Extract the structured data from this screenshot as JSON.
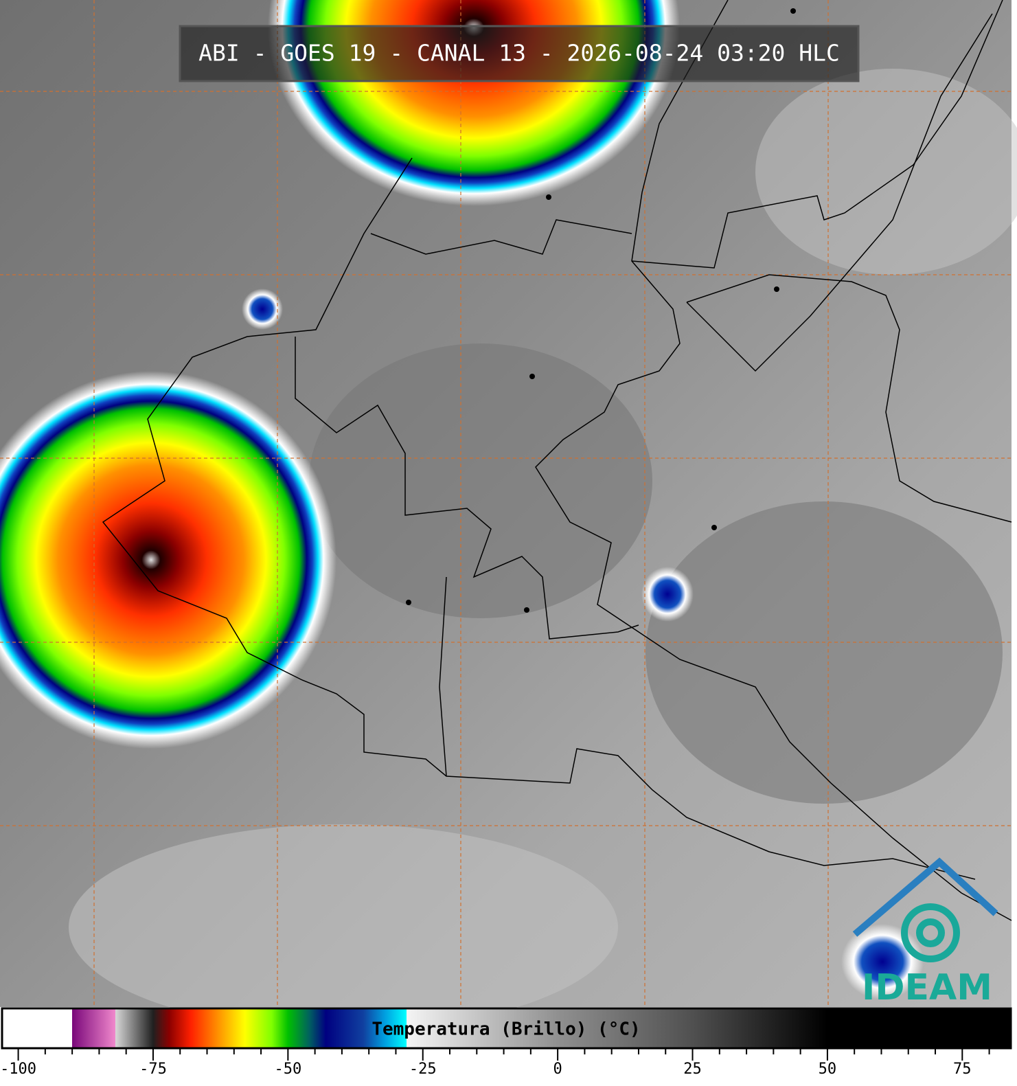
{
  "title": "ABI - GOES 19 - CANAL 13 - 2026-08-24 03:20 HLC",
  "logo": "IDEAM",
  "colorbar": {
    "label": "Temperatura (Brillo) (°C)",
    "xlim": [
      -103,
      84
    ],
    "xticks": [
      -100,
      -75,
      -50,
      -25,
      0,
      25,
      50,
      75
    ],
    "minor_xticks": [
      -95,
      -90,
      -85,
      -80,
      -70,
      -65,
      -60,
      -55,
      -45,
      -40,
      -35,
      -30,
      -20,
      -15,
      -10,
      -5,
      5,
      10,
      15,
      20,
      30,
      35,
      40,
      45,
      55,
      60,
      65,
      70,
      80
    ],
    "stops": [
      {
        "value": -103,
        "color": "#ffffff"
      },
      {
        "value": -90,
        "color": "#ffffff"
      },
      {
        "value": -90,
        "color": "#7a087a"
      },
      {
        "value": -82,
        "color": "#f088cc"
      },
      {
        "value": -82,
        "color": "#d8d8d8"
      },
      {
        "value": -75,
        "color": "#202020"
      },
      {
        "value": -72,
        "color": "#8b0000"
      },
      {
        "value": -68,
        "color": "#ff2000"
      },
      {
        "value": -63,
        "color": "#ff9000"
      },
      {
        "value": -58,
        "color": "#ffff00"
      },
      {
        "value": -53,
        "color": "#80ff00"
      },
      {
        "value": -50,
        "color": "#00c000"
      },
      {
        "value": -46,
        "color": "#006060"
      },
      {
        "value": -43,
        "color": "#000080"
      },
      {
        "value": -36,
        "color": "#1040a0"
      },
      {
        "value": -32,
        "color": "#00a0e0"
      },
      {
        "value": -28,
        "color": "#00ffff"
      },
      {
        "value": -28,
        "color": "#f4f4f4"
      },
      {
        "value": 0,
        "color": "#909090"
      },
      {
        "value": 25,
        "color": "#505050"
      },
      {
        "value": 50,
        "color": "#000000"
      },
      {
        "value": 84,
        "color": "#000000"
      }
    ]
  }
}
